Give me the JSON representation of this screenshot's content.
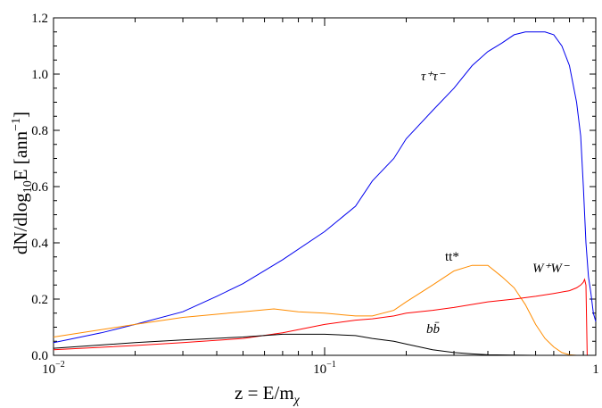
{
  "chart_data": {
    "type": "line",
    "title": "",
    "xlabel": "z = E/m",
    "xlabel_subscript": "χ",
    "ylabel": "dN/dlog",
    "ylabel_subscript": "10",
    "ylabel_tail": "E [ann",
    "ylabel_superscript": "−1",
    "ylabel_end": "]",
    "xscale": "log",
    "xlim": [
      0.01,
      1
    ],
    "ylim": [
      0,
      1.2
    ],
    "x_ticks": [
      {
        "base": "10",
        "exp": "−2",
        "value": 0.01
      },
      {
        "base": "10",
        "exp": "−1",
        "value": 0.1
      },
      {
        "base": "1",
        "exp": "",
        "value": 1
      }
    ],
    "y_ticks": [
      "0.0",
      "0.2",
      "0.4",
      "0.6",
      "0.8",
      "1.0",
      "1.2"
    ],
    "grid": false,
    "series": [
      {
        "key": "tau",
        "color": "#0000ee",
        "label": "τ⁺τ⁻",
        "x": [
          0.01,
          0.015,
          0.02,
          0.03,
          0.04,
          0.05,
          0.07,
          0.1,
          0.13,
          0.15,
          0.18,
          0.2,
          0.25,
          0.3,
          0.35,
          0.4,
          0.45,
          0.5,
          0.55,
          0.6,
          0.65,
          0.7,
          0.75,
          0.8,
          0.85,
          0.88,
          0.9,
          0.92,
          0.94,
          0.96,
          0.98,
          1.0
        ],
        "y": [
          0.045,
          0.08,
          0.11,
          0.155,
          0.21,
          0.255,
          0.34,
          0.44,
          0.53,
          0.62,
          0.7,
          0.77,
          0.87,
          0.95,
          1.03,
          1.08,
          1.11,
          1.14,
          1.15,
          1.15,
          1.15,
          1.14,
          1.1,
          1.03,
          0.9,
          0.78,
          0.6,
          0.4,
          0.28,
          0.22,
          0.15,
          0.12
        ]
      },
      {
        "key": "tt",
        "color": "#ff8c00",
        "label": "tt*",
        "x": [
          0.01,
          0.02,
          0.03,
          0.05,
          0.065,
          0.08,
          0.1,
          0.13,
          0.15,
          0.18,
          0.2,
          0.25,
          0.3,
          0.35,
          0.4,
          0.45,
          0.5,
          0.55,
          0.6,
          0.65,
          0.7,
          0.75,
          0.8,
          0.85,
          0.9,
          1.0
        ],
        "y": [
          0.065,
          0.11,
          0.135,
          0.155,
          0.165,
          0.155,
          0.15,
          0.14,
          0.14,
          0.16,
          0.19,
          0.25,
          0.3,
          0.32,
          0.32,
          0.28,
          0.24,
          0.18,
          0.11,
          0.06,
          0.03,
          0.01,
          0.002,
          0.0,
          0.0,
          0.0
        ]
      },
      {
        "key": "ww",
        "color": "#ff0000",
        "label": "W⁺W⁻",
        "x": [
          0.01,
          0.02,
          0.03,
          0.05,
          0.07,
          0.1,
          0.13,
          0.15,
          0.18,
          0.2,
          0.25,
          0.3,
          0.4,
          0.5,
          0.6,
          0.7,
          0.8,
          0.85,
          0.88,
          0.9,
          0.91,
          0.92,
          0.93,
          1.0
        ],
        "y": [
          0.02,
          0.035,
          0.045,
          0.06,
          0.08,
          0.11,
          0.125,
          0.13,
          0.14,
          0.15,
          0.16,
          0.17,
          0.19,
          0.2,
          0.21,
          0.22,
          0.23,
          0.24,
          0.25,
          0.26,
          0.27,
          0.25,
          0.0,
          0.0
        ]
      },
      {
        "key": "bb",
        "color": "#000000",
        "label": "bb̄",
        "x": [
          0.01,
          0.02,
          0.03,
          0.05,
          0.07,
          0.08,
          0.1,
          0.13,
          0.15,
          0.18,
          0.2,
          0.25,
          0.3,
          0.35,
          0.4,
          0.5,
          0.6,
          0.8,
          1.0
        ],
        "y": [
          0.025,
          0.045,
          0.055,
          0.065,
          0.075,
          0.075,
          0.075,
          0.07,
          0.06,
          0.05,
          0.04,
          0.02,
          0.01,
          0.005,
          0.002,
          0.001,
          0.0,
          0.0,
          0.0
        ]
      }
    ]
  }
}
